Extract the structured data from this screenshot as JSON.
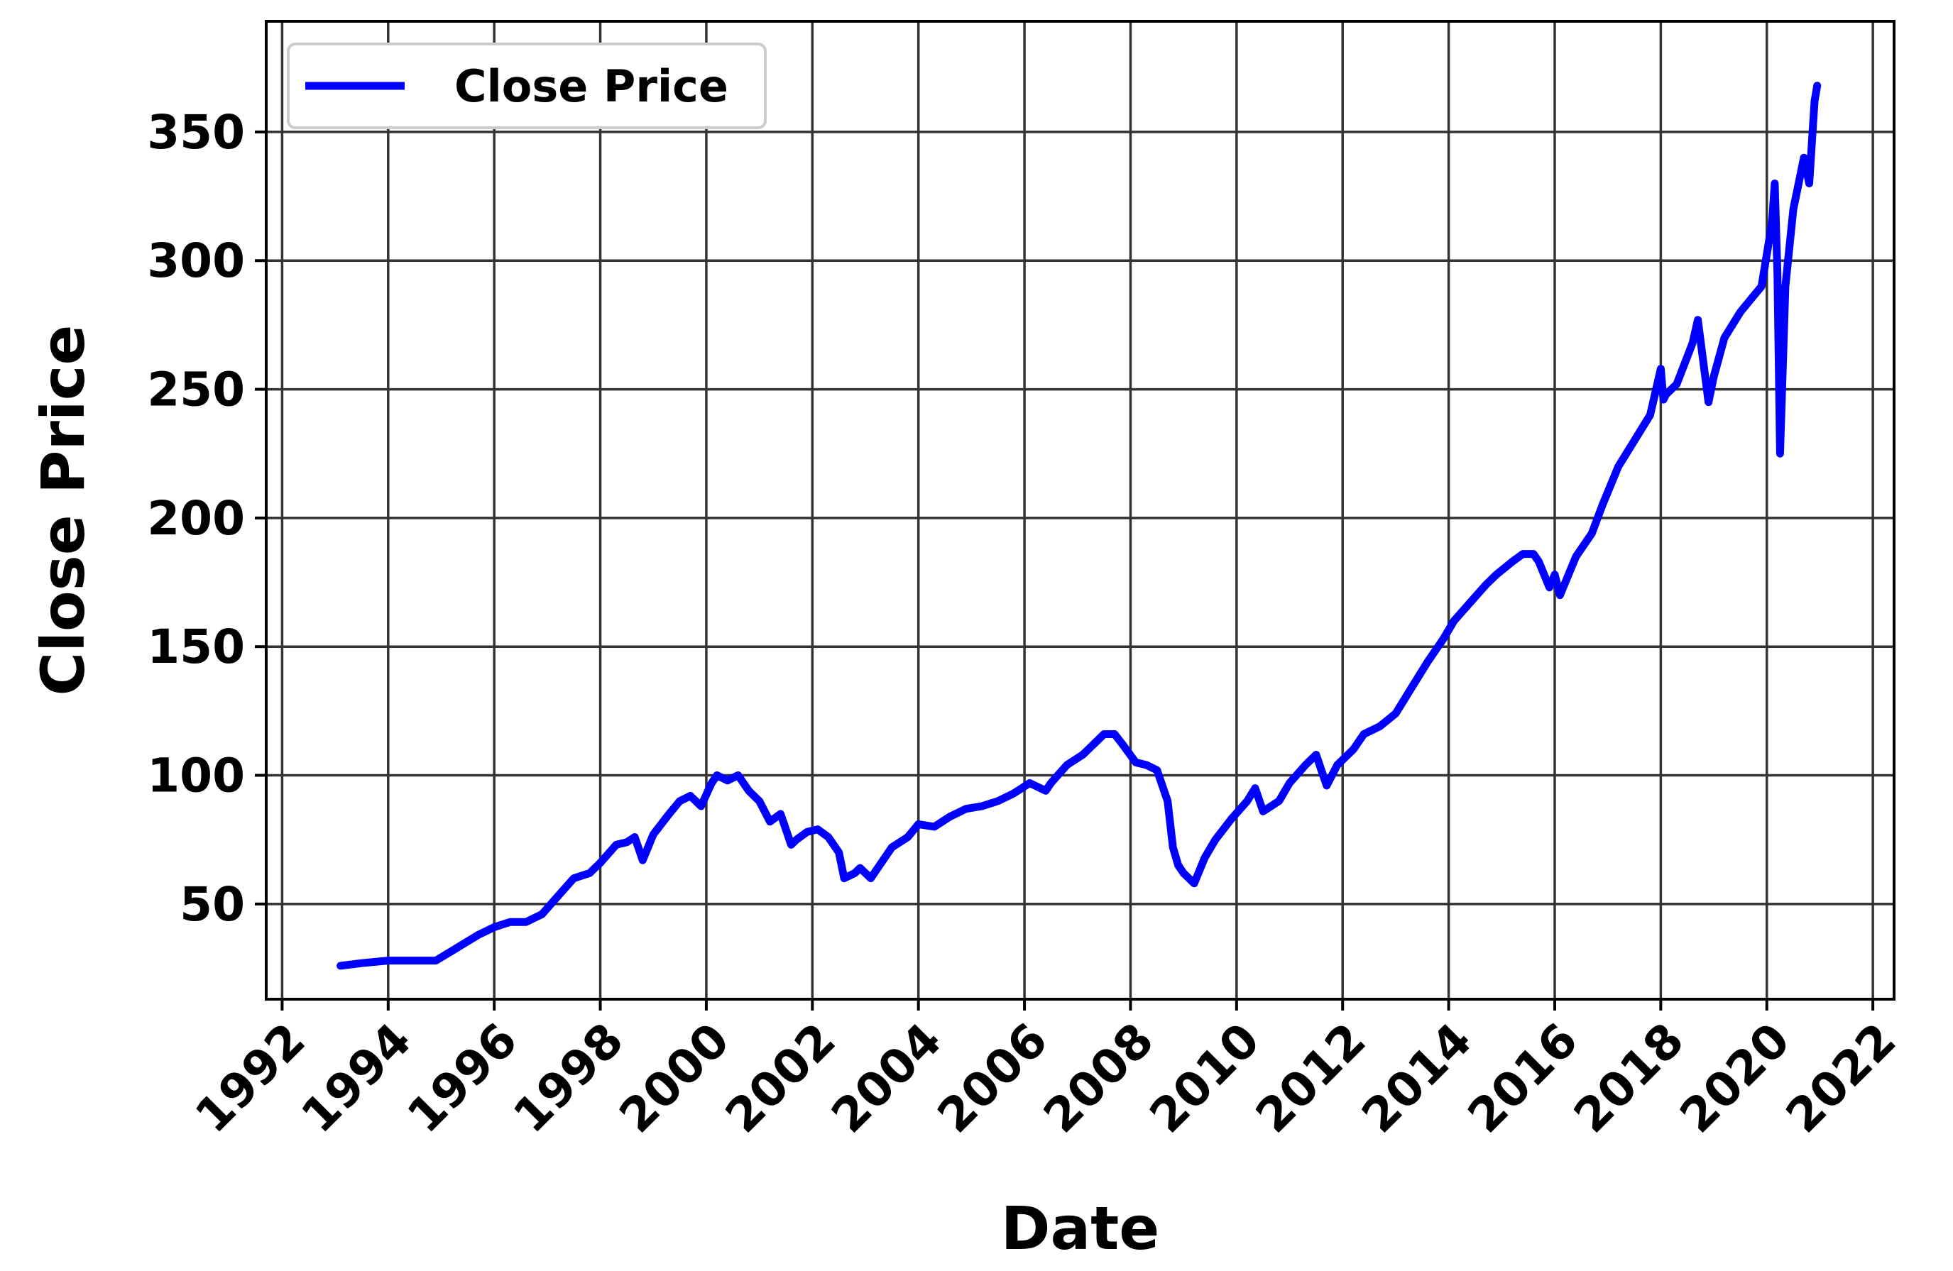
{
  "chart_data": {
    "type": "line",
    "title": "",
    "xlabel": "Date",
    "ylabel": "Close Price",
    "xlim": [
      1991.7,
      2022.4
    ],
    "ylim": [
      13,
      393
    ],
    "grid": true,
    "legend": {
      "placement": "top-left",
      "entries": [
        "Close Price"
      ]
    },
    "x_ticks": [
      1992,
      1994,
      1996,
      1998,
      2000,
      2002,
      2004,
      2006,
      2008,
      2010,
      2012,
      2014,
      2016,
      2018,
      2020,
      2022
    ],
    "x_tick_labels": [
      "1992",
      "1994",
      "1996",
      "1998",
      "2000",
      "2002",
      "2004",
      "2006",
      "2008",
      "2010",
      "2012",
      "2014",
      "2016",
      "2018",
      "2020",
      "2022"
    ],
    "y_ticks": [
      50,
      100,
      150,
      200,
      250,
      300,
      350
    ],
    "y_tick_labels": [
      "50",
      "100",
      "150",
      "200",
      "250",
      "300",
      "350"
    ],
    "colors": {
      "series": "#0000ff",
      "grid": "#333333",
      "axes": "#000000"
    },
    "series": [
      {
        "name": "Close Price",
        "x": [
          1993.1,
          1993.5,
          1994.0,
          1994.5,
          1994.9,
          1995.3,
          1995.7,
          1996.0,
          1996.3,
          1996.6,
          1996.9,
          1997.2,
          1997.5,
          1997.8,
          1998.0,
          1998.3,
          1998.5,
          1998.65,
          1998.8,
          1999.0,
          1999.3,
          1999.5,
          1999.7,
          1999.9,
          2000.1,
          2000.2,
          2000.4,
          2000.6,
          2000.8,
          2001.0,
          2001.2,
          2001.4,
          2001.6,
          2001.7,
          2001.9,
          2002.1,
          2002.3,
          2002.5,
          2002.6,
          2002.8,
          2002.9,
          2003.1,
          2003.3,
          2003.5,
          2003.8,
          2004.0,
          2004.3,
          2004.6,
          2004.9,
          2005.2,
          2005.5,
          2005.8,
          2006.1,
          2006.4,
          2006.5,
          2006.8,
          2007.1,
          2007.3,
          2007.5,
          2007.7,
          2007.85,
          2008.1,
          2008.3,
          2008.5,
          2008.7,
          2008.8,
          2008.9,
          2009.0,
          2009.2,
          2009.4,
          2009.6,
          2009.9,
          2010.2,
          2010.35,
          2010.5,
          2010.8,
          2011.0,
          2011.3,
          2011.5,
          2011.6,
          2011.7,
          2011.9,
          2012.2,
          2012.4,
          2012.7,
          2013.0,
          2013.3,
          2013.6,
          2013.9,
          2014.1,
          2014.4,
          2014.7,
          2014.9,
          2015.2,
          2015.4,
          2015.6,
          2015.7,
          2015.9,
          2016.0,
          2016.1,
          2016.4,
          2016.7,
          2016.9,
          2017.2,
          2017.5,
          2017.8,
          2018.0,
          2018.05,
          2018.1,
          2018.3,
          2018.6,
          2018.7,
          2018.9,
          2019.0,
          2019.2,
          2019.5,
          2019.7,
          2019.9,
          2020.1,
          2020.15,
          2020.2,
          2020.25,
          2020.35,
          2020.5,
          2020.7,
          2020.8,
          2020.9,
          2020.95
        ],
        "y": [
          26,
          27,
          28,
          28,
          28,
          33,
          38,
          41,
          43,
          43,
          46,
          53,
          60,
          62,
          66,
          73,
          74,
          76,
          67,
          77,
          85,
          90,
          92,
          88,
          97,
          100,
          98,
          100,
          94,
          90,
          82,
          85,
          73,
          75,
          78,
          79,
          76,
          70,
          60,
          62,
          64,
          60,
          66,
          72,
          76,
          81,
          80,
          84,
          87,
          88,
          90,
          93,
          97,
          94,
          97,
          104,
          108,
          112,
          116,
          116,
          112,
          105,
          104,
          102,
          90,
          72,
          65,
          62,
          58,
          68,
          75,
          83,
          90,
          95,
          86,
          90,
          97,
          104,
          108,
          102,
          96,
          104,
          110,
          116,
          119,
          124,
          134,
          144,
          153,
          160,
          167,
          174,
          178,
          183,
          186,
          186,
          183,
          173,
          178,
          170,
          185,
          194,
          205,
          220,
          230,
          240,
          258,
          246,
          248,
          252,
          268,
          277,
          245,
          255,
          270,
          280,
          285,
          290,
          315,
          330,
          295,
          225,
          290,
          320,
          340,
          330,
          362,
          368
        ]
      }
    ]
  }
}
